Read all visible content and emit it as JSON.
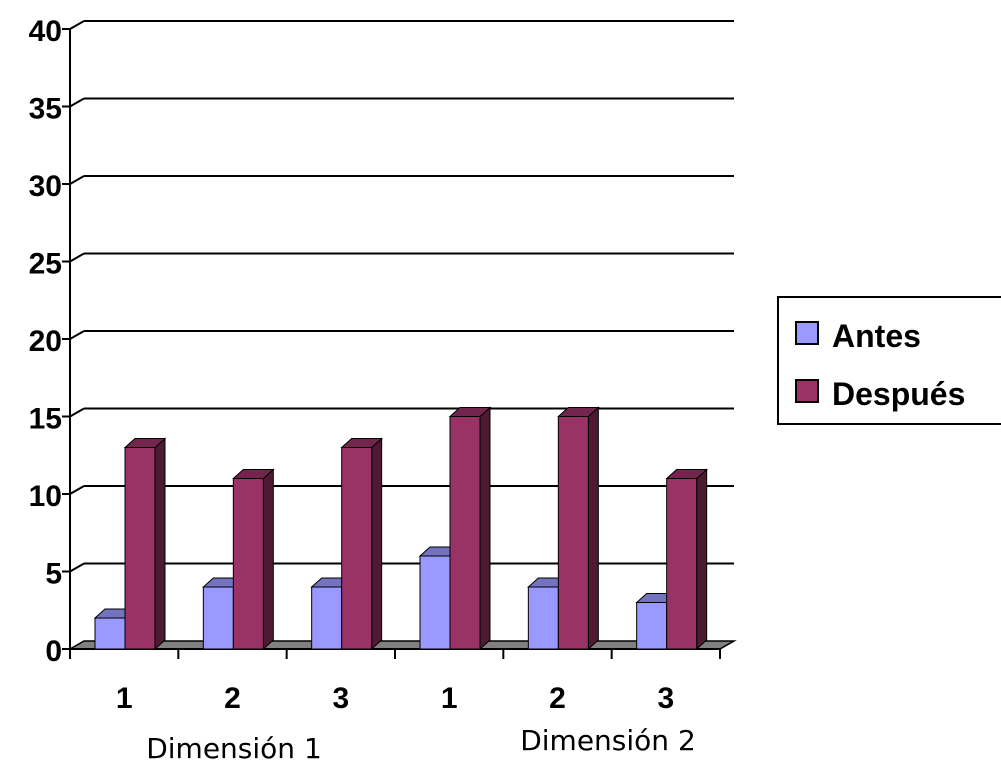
{
  "chart_data": {
    "type": "bar",
    "categories": [
      "1",
      "2",
      "3",
      "1",
      "2",
      "3"
    ],
    "groups": [
      {
        "label": "Dimensión 1",
        "categories": [
          "1",
          "2",
          "3"
        ]
      },
      {
        "label": "Dimensión 2",
        "categories": [
          "1",
          "2",
          "3"
        ]
      }
    ],
    "series": [
      {
        "name": "Antes",
        "values": [
          2,
          4,
          4,
          6,
          4,
          3
        ],
        "color": "#9999ff"
      },
      {
        "name": "Después",
        "values": [
          13,
          11,
          13,
          15,
          15,
          11
        ],
        "color": "#993366"
      }
    ],
    "yticks": [
      "0",
      "5",
      "10",
      "15",
      "20",
      "25",
      "30",
      "35",
      "40"
    ],
    "ylim": [
      0,
      40
    ],
    "grid": true,
    "legend": "right",
    "three_d": true
  }
}
